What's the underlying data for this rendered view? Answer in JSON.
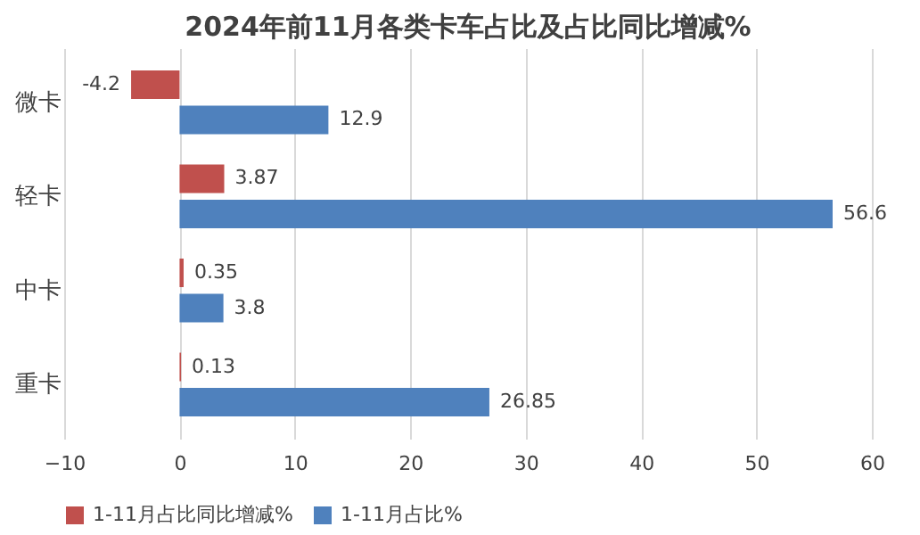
{
  "chart_data": {
    "type": "bar",
    "orientation": "horizontal",
    "title": "2024年前11月各类卡车占比及占比同比增减%",
    "categories": [
      "微卡",
      "轻卡",
      "中卡",
      "重卡"
    ],
    "series": [
      {
        "name": "1-11月占比同比增减%",
        "color": "#c0504d",
        "values": [
          -4.2,
          3.87,
          0.35,
          0.13
        ]
      },
      {
        "name": "1-11月占比%",
        "color": "#4f81bd",
        "values": [
          12.9,
          56.6,
          3.8,
          26.85
        ]
      }
    ],
    "xlim": [
      -10,
      60
    ],
    "xticks": [
      -10,
      0,
      10,
      20,
      30,
      40,
      50,
      60
    ],
    "grid": "x",
    "legend": "bottom",
    "data_labels": true
  }
}
